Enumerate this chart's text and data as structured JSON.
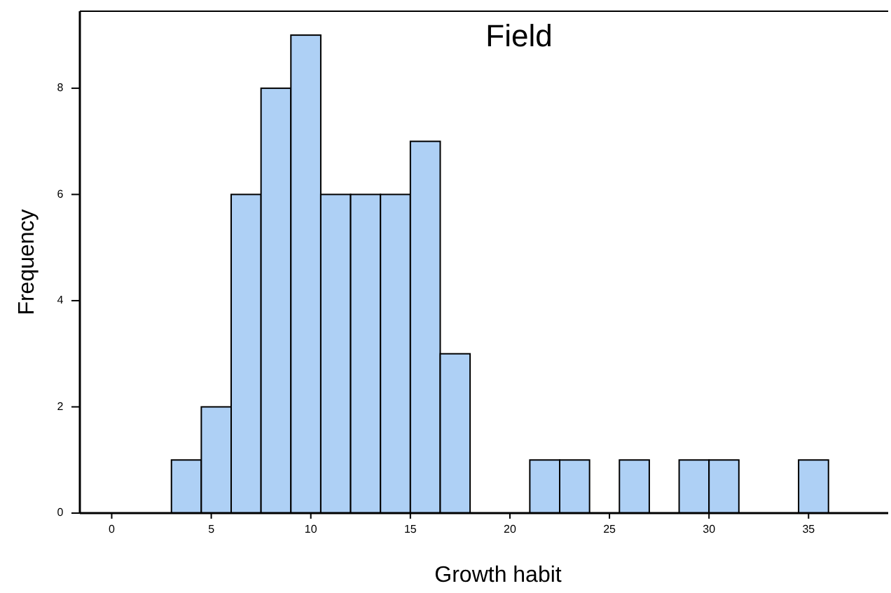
{
  "chart_data": {
    "type": "histogram",
    "title": "Field",
    "xlabel": "Growth habit",
    "ylabel": "Frequency",
    "bins": [
      3,
      4.5,
      6,
      7.5,
      9,
      10.5,
      12,
      13.5,
      15,
      16.5,
      18,
      19.5,
      21,
      22.5,
      24,
      25.5,
      27,
      28.5,
      30,
      31.5,
      33,
      34.5,
      36
    ],
    "values": [
      1,
      2,
      6,
      8,
      9,
      6,
      6,
      6,
      7,
      3,
      0,
      0,
      1,
      1,
      0,
      1,
      0,
      1,
      1,
      0,
      0,
      1
    ],
    "color": "#aed0f5",
    "xlim": [
      -1.6,
      39
    ],
    "xticks": [
      0,
      5,
      10,
      15,
      20,
      25,
      30,
      35
    ],
    "ylim": [
      0,
      9.45
    ],
    "yticks": [
      0,
      2,
      4,
      6,
      8
    ],
    "grid": false
  }
}
